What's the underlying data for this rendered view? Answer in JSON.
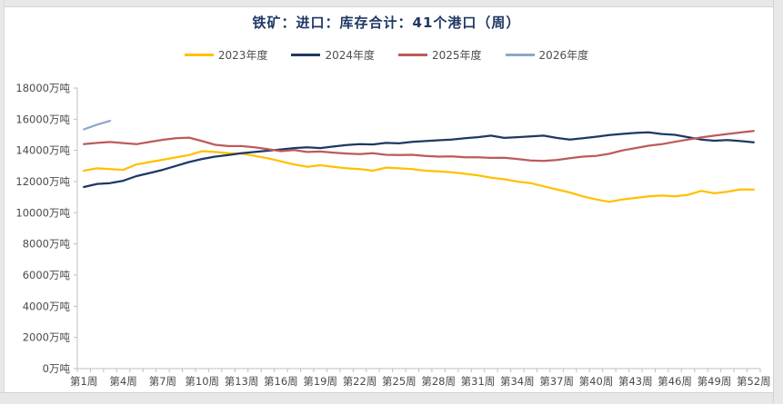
{
  "window": {
    "frame_color": "#e8e8e8"
  },
  "chart": {
    "title_color": "#1F3864",
    "axis_color": "#bfbfbf",
    "tick_label_color": "#4a4a4a"
  },
  "chart_data": {
    "type": "line",
    "title": "铁矿：进口：库存合计：41个港口（周）",
    "xlabel": "",
    "ylabel": "",
    "y_unit": "万吨",
    "ylim": [
      0,
      18000
    ],
    "ytick_step": 2000,
    "ytick_labels": [
      "0万吨",
      "2000万吨",
      "4000万吨",
      "6000万吨",
      "8000万吨",
      "10000万吨",
      "12000万吨",
      "14000万吨",
      "16000万吨",
      "18000万吨"
    ],
    "x_count": 52,
    "x_tick_label_every": 3,
    "x_tick_labels": [
      "第1周",
      "第4周",
      "第7周",
      "第10周",
      "第13周",
      "第16周",
      "第19周",
      "第22周",
      "第25周",
      "第28周",
      "第31周",
      "第34周",
      "第37周",
      "第40周",
      "第43周",
      "第46周",
      "第49周",
      "第52周"
    ],
    "grid": false,
    "legend_position": "top",
    "series": [
      {
        "name": "2023年度",
        "color": "#FFC000",
        "values": [
          12700,
          12850,
          12800,
          12750,
          13100,
          13250,
          13400,
          13550,
          13700,
          13950,
          13900,
          13820,
          13800,
          13650,
          13500,
          13300,
          13100,
          12950,
          13050,
          12950,
          12850,
          12800,
          12700,
          12900,
          12850,
          12800,
          12700,
          12650,
          12600,
          12500,
          12400,
          12250,
          12150,
          12000,
          11900,
          11700,
          11500,
          11300,
          11050,
          10850,
          10700,
          10850,
          10950,
          11050,
          11100,
          11050,
          11150,
          11400,
          11250,
          11350,
          11500,
          11480
        ]
      },
      {
        "name": "2024年度",
        "color": "#1F3864",
        "values": [
          11650,
          11850,
          11900,
          12050,
          12350,
          12550,
          12750,
          13000,
          13250,
          13450,
          13600,
          13700,
          13820,
          13900,
          13980,
          14060,
          14150,
          14200,
          14150,
          14250,
          14350,
          14400,
          14380,
          14480,
          14450,
          14550,
          14600,
          14650,
          14700,
          14780,
          14850,
          14950,
          14800,
          14850,
          14900,
          14950,
          14800,
          14700,
          14780,
          14880,
          14980,
          15060,
          15120,
          15160,
          15050,
          15000,
          14850,
          14700,
          14620,
          14660,
          14600,
          14520
        ]
      },
      {
        "name": "2025年度",
        "color": "#BC5B5B",
        "values": [
          14400,
          14480,
          14540,
          14470,
          14400,
          14540,
          14680,
          14780,
          14820,
          14600,
          14360,
          14280,
          14280,
          14200,
          14080,
          13950,
          14020,
          13900,
          13930,
          13860,
          13800,
          13760,
          13820,
          13720,
          13700,
          13720,
          13650,
          13600,
          13620,
          13560,
          13560,
          13520,
          13530,
          13450,
          13350,
          13320,
          13380,
          13500,
          13600,
          13650,
          13780,
          14000,
          14150,
          14300,
          14400,
          14550,
          14700,
          14830,
          14950,
          15050,
          15150,
          15250
        ]
      },
      {
        "name": "2026年度",
        "color": "#8FA6C6",
        "values": [
          15350,
          15650,
          15900
        ]
      }
    ]
  }
}
